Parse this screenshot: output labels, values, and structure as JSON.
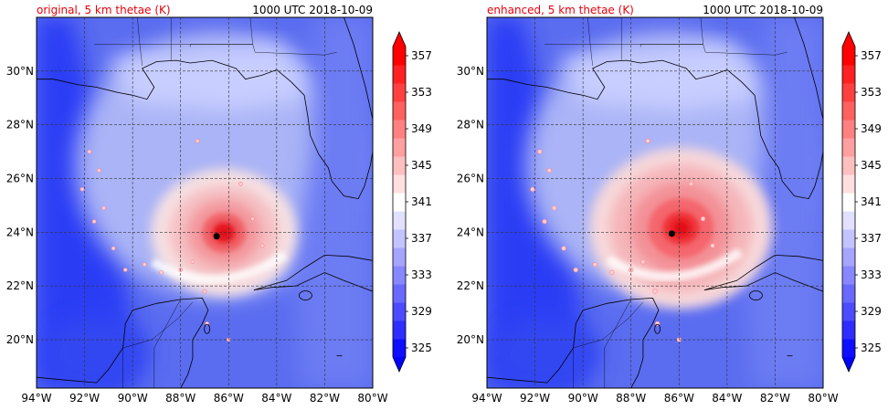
{
  "panels": [
    {
      "title_left": "original, 5 km thetae (K)",
      "title_right": "1000 UTC 2018-10-09",
      "title_left_color": "#e8000b"
    },
    {
      "title_left": "enhanced, 5 km thetae (K)",
      "title_right": "1000 UTC 2018-10-09",
      "title_left_color": "#e8000b"
    }
  ],
  "chart_data": [
    {
      "type": "heatmap",
      "title": "original, 5 km thetae (K)",
      "valid_time": "1000 UTC 2018-10-09",
      "x_ticks": [
        "94°W",
        "92°W",
        "90°W",
        "88°W",
        "86°W",
        "84°W",
        "82°W",
        "80°W"
      ],
      "x_values": [
        -94,
        -92,
        -90,
        -88,
        -86,
        -84,
        -82,
        -80
      ],
      "y_ticks": [
        "20°N",
        "22°N",
        "24°N",
        "26°N",
        "28°N",
        "30°N"
      ],
      "y_values": [
        20,
        22,
        24,
        26,
        28,
        30
      ],
      "xlim": [
        -94,
        -80
      ],
      "ylim": [
        18.2,
        32.0
      ],
      "grid": true,
      "storm_center": {
        "lon": -86.5,
        "lat": 23.85
      },
      "colorbar": {
        "ticks": [
          "325",
          "329",
          "333",
          "337",
          "341",
          "345",
          "349",
          "353",
          "357"
        ],
        "levels": [
          325,
          327,
          329,
          331,
          333,
          335,
          337,
          339,
          341,
          343,
          345,
          347,
          349,
          351,
          353,
          355,
          357,
          359
        ],
        "extend": "both",
        "low_color": "#0000ff",
        "high_color": "#ff0000",
        "mid_color": "#ffffff"
      }
    },
    {
      "type": "heatmap",
      "title": "enhanced, 5 km thetae (K)",
      "valid_time": "1000 UTC 2018-10-09",
      "x_ticks": [
        "94°W",
        "92°W",
        "90°W",
        "88°W",
        "86°W",
        "84°W",
        "82°W",
        "80°W"
      ],
      "x_values": [
        -94,
        -92,
        -90,
        -88,
        -86,
        -84,
        -82,
        -80
      ],
      "y_ticks": [
        "20°N",
        "22°N",
        "24°N",
        "26°N",
        "28°N",
        "30°N"
      ],
      "y_values": [
        20,
        22,
        24,
        26,
        28,
        30
      ],
      "xlim": [
        -94,
        -80
      ],
      "ylim": [
        18.2,
        32.0
      ],
      "grid": true,
      "storm_center": {
        "lon": -86.3,
        "lat": 23.95
      },
      "colorbar": {
        "ticks": [
          "325",
          "329",
          "333",
          "337",
          "341",
          "345",
          "349",
          "353",
          "357"
        ],
        "levels": [
          325,
          327,
          329,
          331,
          333,
          335,
          337,
          339,
          341,
          343,
          345,
          347,
          349,
          351,
          353,
          355,
          357,
          359
        ],
        "extend": "both",
        "low_color": "#0000ff",
        "high_color": "#ff0000",
        "mid_color": "#ffffff"
      }
    }
  ]
}
